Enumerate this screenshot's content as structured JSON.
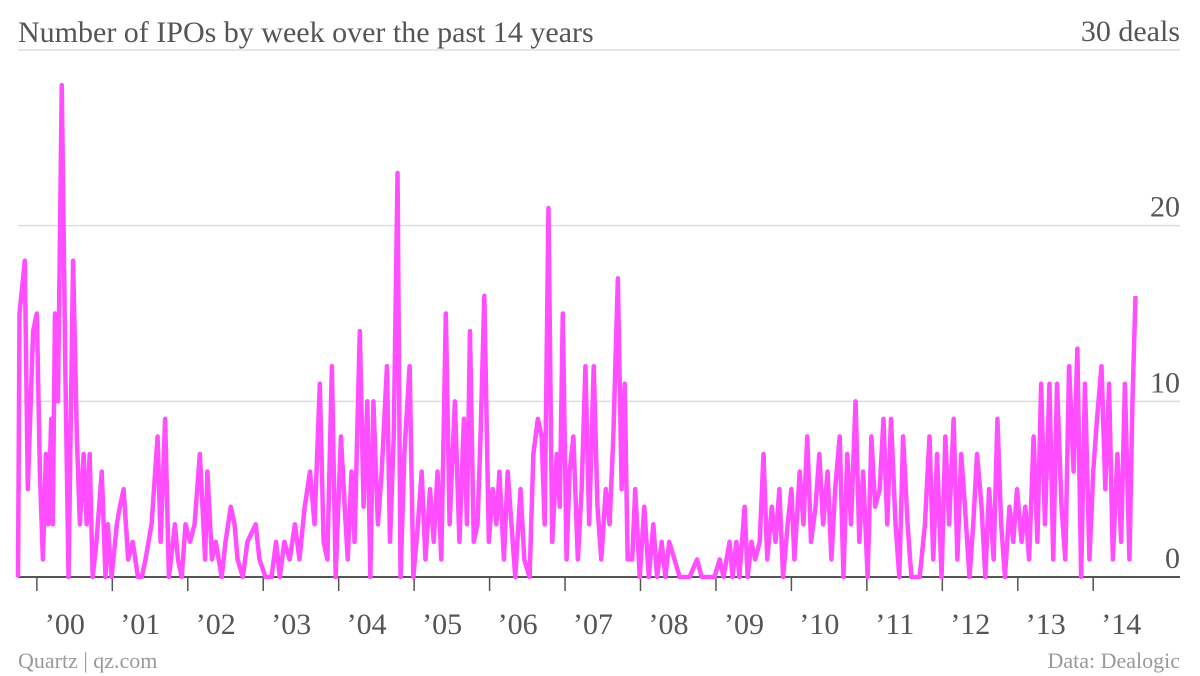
{
  "chart_data": {
    "type": "line",
    "title": "Number of IPOs by week over the past 14 years",
    "source_left": "Quartz | qz.com",
    "source_right": "Data: Dealogic",
    "xlim": [
      1999.75,
      2015.15
    ],
    "ylim": [
      0,
      30
    ],
    "xticks": [
      {
        "value": 2000,
        "label": "’00"
      },
      {
        "value": 2001,
        "label": "’01"
      },
      {
        "value": 2002,
        "label": "’02"
      },
      {
        "value": 2003,
        "label": "’03"
      },
      {
        "value": 2004,
        "label": "’04"
      },
      {
        "value": 2005,
        "label": "’05"
      },
      {
        "value": 2006,
        "label": "’06"
      },
      {
        "value": 2007,
        "label": "’07"
      },
      {
        "value": 2008,
        "label": "’08"
      },
      {
        "value": 2009,
        "label": "’09"
      },
      {
        "value": 2010,
        "label": "’10"
      },
      {
        "value": 2011,
        "label": "’11"
      },
      {
        "value": 2012,
        "label": "’12"
      },
      {
        "value": 2013,
        "label": "’13"
      },
      {
        "value": 2014,
        "label": "’14"
      }
    ],
    "yticks": [
      0,
      10,
      20,
      {
        "value": 30,
        "label": "30 deals"
      }
    ],
    "grid": true,
    "series": [
      {
        "color": "#ff4dff",
        "x": [
          1999.75,
          1999.77,
          1999.84,
          1999.88,
          1999.95,
          2000.0,
          2000.04,
          2000.08,
          2000.12,
          2000.15,
          2000.19,
          2000.21,
          2000.24,
          2000.28,
          2000.33,
          2000.38,
          2000.42,
          2000.48,
          2000.53,
          2000.57,
          2000.62,
          2000.66,
          2000.7,
          2000.74,
          2000.79,
          2000.86,
          2000.91,
          2000.94,
          2000.99,
          2001.06,
          2001.1,
          2001.15,
          2001.21,
          2001.27,
          2001.34,
          2001.39,
          2001.44,
          2001.52,
          2001.6,
          2001.64,
          2001.7,
          2001.75,
          2001.83,
          2001.87,
          2001.92,
          2001.97,
          2002.03,
          2002.09,
          2002.16,
          2002.23,
          2002.26,
          2002.32,
          2002.37,
          2002.45,
          2002.5,
          2002.57,
          2002.62,
          2002.66,
          2002.73,
          2002.79,
          2002.9,
          2002.95,
          2003.03,
          2003.11,
          2003.17,
          2003.22,
          2003.28,
          2003.35,
          2003.42,
          2003.48,
          2003.55,
          2003.62,
          2003.68,
          2003.75,
          2003.8,
          2003.85,
          2003.91,
          2003.96,
          2004.03,
          2004.08,
          2004.12,
          2004.17,
          2004.21,
          2004.28,
          2004.33,
          2004.38,
          2004.42,
          2004.46,
          2004.52,
          2004.57,
          2004.64,
          2004.68,
          2004.73,
          2004.78,
          2004.82,
          2004.87,
          2004.94,
          2004.99,
          2005.05,
          2005.1,
          2005.15,
          2005.21,
          2005.26,
          2005.31,
          2005.36,
          2005.42,
          2005.47,
          2005.54,
          2005.6,
          2005.66,
          2005.7,
          2005.74,
          2005.79,
          2005.84,
          2005.88,
          2005.93,
          2005.99,
          2006.04,
          2006.09,
          2006.13,
          2006.19,
          2006.24,
          2006.29,
          2006.34,
          2006.41,
          2006.46,
          2006.53,
          2006.58,
          2006.64,
          2006.69,
          2006.73,
          2006.78,
          2006.83,
          2006.89,
          2006.93,
          2006.97,
          2007.02,
          2007.06,
          2007.11,
          2007.17,
          2007.22,
          2007.27,
          2007.32,
          2007.38,
          2007.43,
          2007.48,
          2007.54,
          2007.59,
          2007.64,
          2007.7,
          2007.75,
          2007.79,
          2007.83,
          2007.89,
          2007.93,
          2007.99,
          2008.05,
          2008.11,
          2008.17,
          2008.22,
          2008.28,
          2008.33,
          2008.38,
          2008.45,
          2008.52,
          2008.65,
          2008.75,
          2008.81,
          2008.98,
          2009.05,
          2009.1,
          2009.18,
          2009.22,
          2009.27,
          2009.31,
          2009.38,
          2009.42,
          2009.47,
          2009.52,
          2009.58,
          2009.63,
          2009.68,
          2009.74,
          2009.79,
          2009.84,
          2009.89,
          2009.95,
          2010.0,
          2010.04,
          2010.11,
          2010.16,
          2010.21,
          2010.26,
          2010.32,
          2010.37,
          2010.42,
          2010.48,
          2010.53,
          2010.58,
          2010.64,
          2010.69,
          2010.74,
          2010.79,
          2010.85,
          2010.9,
          2010.95,
          2011.01,
          2011.06,
          2011.11,
          2011.17,
          2011.22,
          2011.27,
          2011.32,
          2011.38,
          2011.43,
          2011.48,
          2011.54,
          2011.59,
          2011.7,
          2011.77,
          2011.83,
          2011.88,
          2011.93,
          2011.99,
          2012.04,
          2012.09,
          2012.15,
          2012.2,
          2012.25,
          2012.3,
          2012.36,
          2012.41,
          2012.46,
          2012.52,
          2012.57,
          2012.62,
          2012.68,
          2012.73,
          2012.78,
          2012.83,
          2012.89,
          2012.94,
          2012.99,
          2013.05,
          2013.1,
          2013.15,
          2013.21,
          2013.26,
          2013.31,
          2013.36,
          2013.42,
          2013.47,
          2013.52,
          2013.58,
          2013.63,
          2013.68,
          2013.74,
          2013.79,
          2013.84,
          2013.89,
          2013.95,
          2014.0,
          2014.05,
          2014.11,
          2014.16,
          2014.21,
          2014.26,
          2014.32,
          2014.37,
          2014.42,
          2014.48,
          2014.52,
          2014.56
        ],
        "values": [
          0,
          15,
          18,
          5,
          14,
          15,
          6,
          1,
          7,
          3,
          9,
          3,
          15,
          10,
          28,
          11,
          0,
          18,
          8,
          3,
          7,
          3,
          7,
          0,
          2,
          6,
          0,
          3,
          0,
          3,
          4,
          5,
          1,
          2,
          0,
          0,
          1,
          3,
          8,
          2,
          9,
          0,
          3,
          1,
          0,
          3,
          2,
          3,
          7,
          1,
          6,
          1,
          2,
          0,
          2,
          4,
          3,
          1,
          0,
          2,
          3,
          1,
          0,
          0,
          2,
          0,
          2,
          1,
          3,
          1,
          4,
          6,
          3,
          11,
          2,
          1,
          12,
          0,
          8,
          4,
          1,
          6,
          2,
          14,
          4,
          10,
          0,
          10,
          3,
          6,
          12,
          2,
          8,
          23,
          0,
          7,
          12,
          0,
          3,
          6,
          1,
          5,
          2,
          6,
          1,
          15,
          3,
          10,
          2,
          9,
          3,
          14,
          2,
          3,
          8,
          16,
          2,
          5,
          3,
          6,
          1,
          6,
          3,
          0,
          5,
          1,
          0,
          7,
          9,
          8,
          3,
          21,
          2,
          7,
          4,
          15,
          1,
          6,
          8,
          1,
          5,
          12,
          3,
          12,
          4,
          1,
          5,
          3,
          8,
          17,
          5,
          11,
          1,
          1,
          5,
          0,
          4,
          0,
          3,
          0,
          2,
          0,
          2,
          1,
          0,
          0,
          1,
          0,
          0,
          1,
          0,
          2,
          0,
          2,
          0,
          4,
          0,
          2,
          1,
          2,
          7,
          1,
          4,
          2,
          5,
          0,
          3,
          5,
          1,
          6,
          3,
          8,
          2,
          4,
          7,
          3,
          6,
          1,
          5,
          8,
          0,
          7,
          3,
          10,
          2,
          6,
          0,
          8,
          4,
          5,
          9,
          3,
          9,
          3,
          0,
          8,
          3,
          0,
          0,
          3,
          8,
          1,
          7,
          0,
          8,
          3,
          9,
          1,
          7,
          4,
          0,
          3,
          7,
          4,
          0,
          5,
          1,
          9,
          3,
          0,
          4,
          2,
          5,
          2,
          4,
          1,
          8,
          2,
          11,
          3,
          11,
          1,
          11,
          4,
          1,
          12,
          6,
          13,
          0,
          11,
          1,
          6,
          9,
          12,
          5,
          11,
          1,
          7,
          2,
          11,
          1,
          10,
          16
        ]
      }
    ]
  }
}
